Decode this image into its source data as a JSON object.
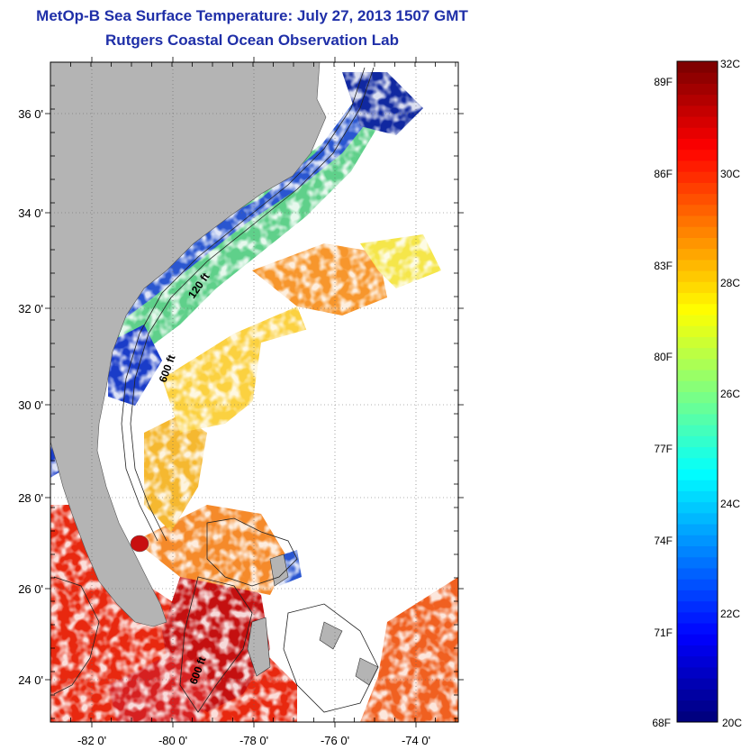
{
  "title": "MetOp-B Sea Surface Temperature:  July 27, 2013 1507 GMT",
  "subtitle": "Rutgers Coastal Ocean Observation Lab",
  "map": {
    "lon_ticks": [
      "-82 0'",
      "-80 0'",
      "-78 0'",
      "-76 0'",
      "-74 0'"
    ],
    "lat_ticks": [
      "36 0'",
      "34 0'",
      "32 0'",
      "30 0'",
      "28 0'",
      "26 0'",
      "24 0'"
    ],
    "contour_labels": [
      "600 ft",
      "120 ft",
      "600 ft"
    ],
    "land_color": "#b4b4b4",
    "ocean_color": "#ffffff"
  },
  "colorbar": {
    "celsius_labels": [
      "32C",
      "30C",
      "28C",
      "26C",
      "24C",
      "22C",
      "20C"
    ],
    "fahrenheit_labels": [
      "89F",
      "86F",
      "83F",
      "80F",
      "77F",
      "74F",
      "71F",
      "68F"
    ],
    "celsius_range": [
      20,
      32
    ],
    "colormap": "jet"
  }
}
